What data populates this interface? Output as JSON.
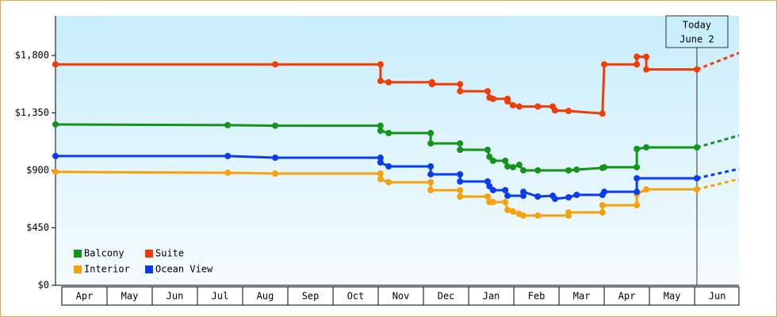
{
  "chart_data": {
    "type": "step-line",
    "xlim": [
      -0.14,
      14.98
    ],
    "ylim": [
      0,
      2110
    ],
    "yticks": [
      {
        "value": 0,
        "label": "$0"
      },
      {
        "value": 450,
        "label": "$450"
      },
      {
        "value": 900,
        "label": "$900"
      },
      {
        "value": 1350,
        "label": "$1,350"
      },
      {
        "value": 1800,
        "label": "$1,800"
      }
    ],
    "xticks": [
      {
        "value": 0.5,
        "label": "Apr"
      },
      {
        "value": 1.5,
        "label": "May"
      },
      {
        "value": 2.5,
        "label": "Jun"
      },
      {
        "value": 3.5,
        "label": "Jul"
      },
      {
        "value": 4.5,
        "label": "Aug"
      },
      {
        "value": 5.5,
        "label": "Sep"
      },
      {
        "value": 6.5,
        "label": "Oct"
      },
      {
        "value": 7.5,
        "label": "Nov"
      },
      {
        "value": 8.5,
        "label": "Dec"
      },
      {
        "value": 9.5,
        "label": "Jan"
      },
      {
        "value": 10.5,
        "label": "Feb"
      },
      {
        "value": 11.5,
        "label": "Mar"
      },
      {
        "value": 12.5,
        "label": "Apr"
      },
      {
        "value": 13.5,
        "label": "May"
      },
      {
        "value": 14.5,
        "label": "Jun"
      }
    ],
    "legend": "lower left",
    "today": {
      "lines": [
        "Today",
        "June 2"
      ],
      "x": 14.05
    },
    "series": [
      {
        "name": "Balcony",
        "color": "#13941a",
        "x": [
          -0.14,
          3.67,
          4.72,
          7.05,
          7.05,
          7.23,
          8.16,
          8.16,
          8.81,
          8.81,
          9.42,
          9.46,
          9.54,
          9.81,
          9.86,
          9.98,
          10.12,
          10.21,
          10.53,
          11.21,
          11.39,
          11.96,
          12.0,
          12.72,
          12.72,
          12.93,
          14.05
        ],
        "values": [
          1260,
          1254,
          1250,
          1250,
          1210,
          1192,
          1192,
          1111,
          1111,
          1061,
          1061,
          1006,
          975,
          975,
          931,
          925,
          943,
          900,
          900,
          900,
          906,
          919,
          925,
          925,
          1068,
          1080,
          1080
        ],
        "projection": {
          "x": [
            14.05,
            14.98
          ],
          "values": [
            1080,
            1173
          ]
        }
      },
      {
        "name": "Suite",
        "color": "#f23c05",
        "x": [
          -0.14,
          4.72,
          7.05,
          7.05,
          7.23,
          8.19,
          8.19,
          8.81,
          8.81,
          9.42,
          9.46,
          9.54,
          9.86,
          9.86,
          9.98,
          10.12,
          10.53,
          10.86,
          10.91,
          11.21,
          11.96,
          12.0,
          12.72,
          12.72,
          12.93,
          12.93,
          14.05
        ],
        "values": [
          1730,
          1730,
          1730,
          1600,
          1590,
          1590,
          1575,
          1575,
          1520,
          1520,
          1470,
          1460,
          1460,
          1440,
          1410,
          1400,
          1400,
          1400,
          1370,
          1365,
          1345,
          1730,
          1730,
          1790,
          1790,
          1690,
          1690
        ],
        "projection": {
          "x": [
            14.05,
            14.98
          ],
          "values": [
            1690,
            1820
          ]
        }
      },
      {
        "name": "Interior",
        "color": "#f6a20c",
        "x": [
          -0.14,
          3.67,
          4.72,
          7.05,
          7.05,
          7.23,
          8.16,
          8.16,
          8.81,
          8.81,
          9.42,
          9.46,
          9.54,
          9.81,
          9.86,
          9.98,
          10.12,
          10.21,
          10.53,
          11.21,
          11.21,
          11.96,
          11.96,
          12.72,
          12.72,
          12.93,
          14.05
        ],
        "values": [
          888,
          881,
          875,
          875,
          832,
          807,
          807,
          745,
          745,
          695,
          695,
          652,
          652,
          652,
          590,
          578,
          559,
          546,
          546,
          546,
          571,
          571,
          627,
          627,
          714,
          751,
          751
        ],
        "projection": {
          "x": [
            14.05,
            14.98
          ],
          "values": [
            751,
            832
          ]
        }
      },
      {
        "name": "Ocean View",
        "color": "#0c3cf2",
        "x": [
          -0.14,
          3.67,
          4.72,
          7.05,
          7.05,
          7.23,
          8.16,
          8.16,
          8.81,
          8.81,
          9.42,
          9.46,
          9.54,
          9.81,
          9.86,
          10.21,
          10.21,
          10.53,
          10.86,
          10.91,
          11.21,
          11.39,
          11.96,
          12.0,
          12.72,
          12.72,
          14.05
        ],
        "values": [
          1012,
          1012,
          999,
          999,
          962,
          931,
          931,
          869,
          869,
          813,
          813,
          776,
          745,
          745,
          701,
          701,
          732,
          695,
          701,
          677,
          689,
          708,
          708,
          732,
          732,
          838,
          838
        ],
        "projection": {
          "x": [
            14.05,
            14.98
          ],
          "values": [
            838,
            912
          ]
        }
      }
    ]
  }
}
